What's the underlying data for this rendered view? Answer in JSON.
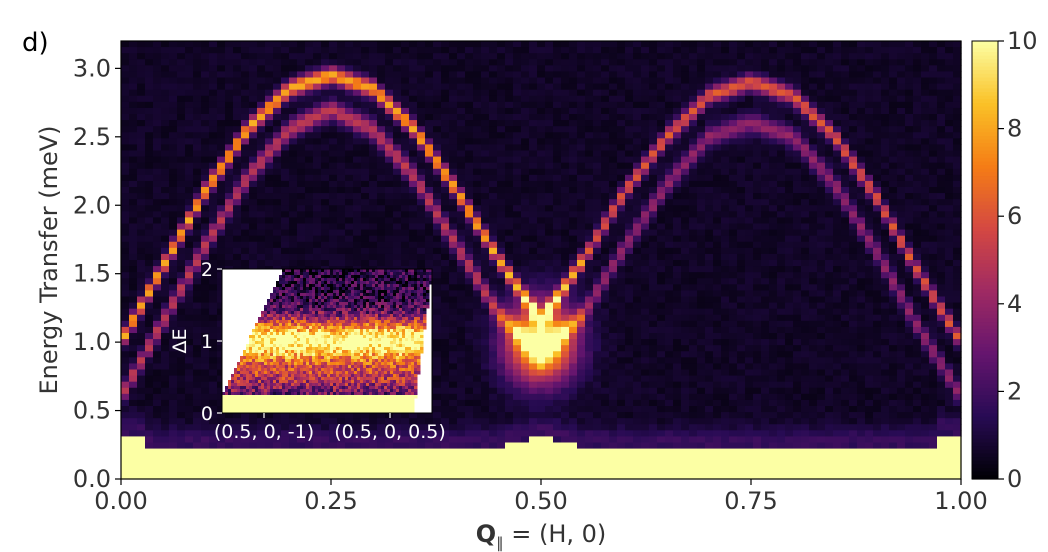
{
  "panel_label": "d)",
  "chart_data": {
    "type": "heatmap",
    "xlabel_bold": "Q",
    "xlabel_sub": "∥",
    "xlabel_rest": " = (H, 0)",
    "ylabel": "Energy Transfer (meV)",
    "xlim": [
      0.0,
      1.0
    ],
    "ylim": [
      0.0,
      3.2
    ],
    "xticks": [
      "0.00",
      "0.25",
      "0.50",
      "0.75",
      "1.00"
    ],
    "xtick_values": [
      0.0,
      0.25,
      0.5,
      0.75,
      1.0
    ],
    "yticks": [
      "0.0",
      "0.5",
      "1.0",
      "1.5",
      "2.0",
      "2.5",
      "3.0"
    ],
    "ytick_values": [
      0.0,
      0.5,
      1.0,
      1.5,
      2.0,
      2.5,
      3.0
    ],
    "colormap": "inferno",
    "colorbar": {
      "range": [
        0,
        10
      ],
      "ticks": [
        "0",
        "2",
        "4",
        "6",
        "8",
        "10"
      ],
      "tick_values": [
        0,
        2,
        4,
        6,
        8,
        10
      ]
    },
    "dispersion": {
      "description_points_H": [
        0.0,
        0.05,
        0.1,
        0.15,
        0.2,
        0.25,
        0.3,
        0.35,
        0.4,
        0.45,
        0.5,
        0.55,
        0.6,
        0.65,
        0.7,
        0.75,
        0.8,
        0.85,
        0.9,
        0.95,
        1.0
      ],
      "upper_branch_E": [
        1.0,
        1.55,
        2.1,
        2.55,
        2.85,
        2.95,
        2.85,
        2.55,
        2.1,
        1.6,
        1.15,
        1.6,
        2.1,
        2.5,
        2.8,
        2.9,
        2.8,
        2.5,
        2.05,
        1.5,
        1.0
      ],
      "lower_branch_E": [
        0.6,
        1.15,
        1.7,
        2.2,
        2.55,
        2.7,
        2.55,
        2.2,
        1.7,
        1.2,
        0.9,
        1.2,
        1.7,
        2.15,
        2.5,
        2.6,
        2.5,
        2.15,
        1.65,
        1.1,
        0.6
      ],
      "elastic_line_max_E": 0.3
    },
    "inset": {
      "ylabel": "ΔE",
      "yticks": [
        "0",
        "1",
        "2"
      ],
      "ytick_values": [
        0,
        1,
        2
      ],
      "xticks": [
        "(0.5, 0, -1)",
        "(0.5, 0, 0.5)"
      ],
      "ylim": [
        0,
        2
      ],
      "flat_band_E": 1.0
    }
  }
}
